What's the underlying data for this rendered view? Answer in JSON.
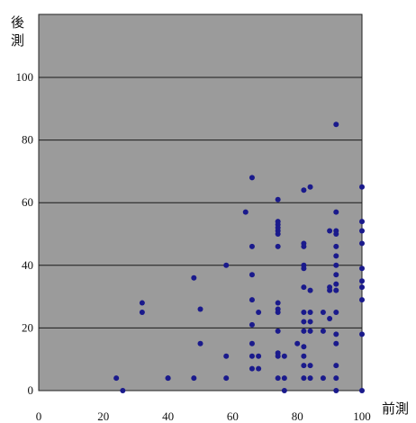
{
  "chart_data": {
    "type": "scatter",
    "xlabel": "前測",
    "ylabel": "後測",
    "xlim": [
      0,
      100
    ],
    "ylim": [
      0,
      100
    ],
    "x_ticks": [
      "0",
      "20",
      "40",
      "60",
      "80",
      "100"
    ],
    "y_ticks": [
      "0",
      "20",
      "40",
      "60",
      "80",
      "100"
    ],
    "grid": "horizontal",
    "background": "#9b9b9b",
    "marker_color": "#1a1a8c",
    "series": [
      {
        "points": [
          [
            24,
            4
          ],
          [
            26,
            0
          ],
          [
            32,
            28
          ],
          [
            32,
            25
          ],
          [
            40,
            4
          ],
          [
            40,
            4
          ],
          [
            48,
            36
          ],
          [
            48,
            4
          ],
          [
            50,
            26
          ],
          [
            50,
            15
          ],
          [
            58,
            40
          ],
          [
            58,
            11
          ],
          [
            58,
            4
          ],
          [
            64,
            57
          ],
          [
            66,
            68
          ],
          [
            66,
            46
          ],
          [
            66,
            37
          ],
          [
            66,
            29
          ],
          [
            66,
            21
          ],
          [
            66,
            15
          ],
          [
            66,
            11
          ],
          [
            66,
            7
          ],
          [
            68,
            25
          ],
          [
            68,
            11
          ],
          [
            68,
            7
          ],
          [
            74,
            61
          ],
          [
            74,
            54
          ],
          [
            74,
            53
          ],
          [
            74,
            52
          ],
          [
            74,
            51
          ],
          [
            74,
            50
          ],
          [
            74,
            46
          ],
          [
            74,
            28
          ],
          [
            74,
            26
          ],
          [
            74,
            25
          ],
          [
            74,
            19
          ],
          [
            74,
            12
          ],
          [
            74,
            11
          ],
          [
            74,
            4
          ],
          [
            76,
            11
          ],
          [
            76,
            4
          ],
          [
            76,
            0
          ],
          [
            80,
            15
          ],
          [
            82,
            64
          ],
          [
            82,
            47
          ],
          [
            82,
            46
          ],
          [
            82,
            40
          ],
          [
            82,
            39
          ],
          [
            82,
            33
          ],
          [
            82,
            25
          ],
          [
            82,
            22
          ],
          [
            82,
            19
          ],
          [
            82,
            14
          ],
          [
            82,
            11
          ],
          [
            82,
            8
          ],
          [
            82,
            4
          ],
          [
            84,
            65
          ],
          [
            84,
            32
          ],
          [
            84,
            25
          ],
          [
            84,
            22
          ],
          [
            84,
            19
          ],
          [
            84,
            8
          ],
          [
            84,
            4
          ],
          [
            88,
            25
          ],
          [
            88,
            19
          ],
          [
            88,
            4
          ],
          [
            90,
            51
          ],
          [
            90,
            33
          ],
          [
            90,
            32
          ],
          [
            90,
            23
          ],
          [
            92,
            85
          ],
          [
            92,
            57
          ],
          [
            92,
            51
          ],
          [
            92,
            50
          ],
          [
            92,
            46
          ],
          [
            92,
            43
          ],
          [
            92,
            40
          ],
          [
            92,
            37
          ],
          [
            92,
            34
          ],
          [
            92,
            32
          ],
          [
            92,
            25
          ],
          [
            92,
            18
          ],
          [
            92,
            15
          ],
          [
            92,
            8
          ],
          [
            92,
            4
          ],
          [
            92,
            0
          ],
          [
            100,
            65
          ],
          [
            100,
            54
          ],
          [
            100,
            51
          ],
          [
            100,
            47
          ],
          [
            100,
            39
          ],
          [
            100,
            35
          ],
          [
            100,
            33
          ],
          [
            100,
            29
          ],
          [
            100,
            18
          ],
          [
            100,
            0
          ]
        ]
      }
    ]
  }
}
